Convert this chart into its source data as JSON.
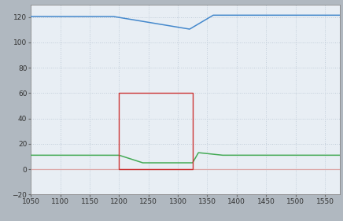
{
  "xlim": [
    1050,
    1575
  ],
  "ylim": [
    -20,
    130
  ],
  "xticks": [
    1050,
    1100,
    1150,
    1200,
    1250,
    1300,
    1350,
    1400,
    1450,
    1500,
    1550
  ],
  "yticks": [
    -20,
    0,
    20,
    40,
    60,
    80,
    100,
    120
  ],
  "outer_bg_color": "#b0b8c0",
  "plot_bg_color": "#e8eef4",
  "grid_color": "#c0ccd8",
  "exercise_start": 1200,
  "exercise_end": 1325,
  "exercise_top": 60,
  "exercise_rect_color": "#cc3333",
  "glucose_color": "#4488cc",
  "insulin_color": "#44aa55",
  "zero_line_color": "#ddaaaa",
  "glucose_baseline": 120.5,
  "glucose_start_drop": 1190,
  "glucose_dip_x": 1320,
  "glucose_dip_y": 110.5,
  "glucose_recover_x": 1360,
  "glucose_recover_y": 121.5,
  "insulin_baseline": 11.0,
  "insulin_drop_start": 1200,
  "insulin_drop_end": 1240,
  "insulin_dip_y": 5.0,
  "insulin_recover_start": 1325,
  "insulin_recover_end": 1375
}
